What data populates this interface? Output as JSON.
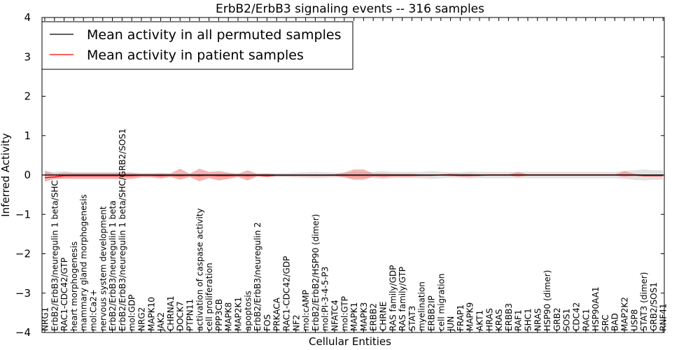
{
  "chart_data": {
    "type": "line",
    "title": "ErbB2/ErbB3 signaling events -- 316 samples",
    "xlabel": "Cellular Entities",
    "ylabel": "Inferred Activity",
    "ylim": [
      -4,
      4
    ],
    "yticks": [
      4,
      3,
      2,
      1,
      0,
      -1,
      -2,
      -3,
      -4
    ],
    "ytick_labels": [
      "4",
      "3",
      "2",
      "1",
      "0",
      "−1",
      "−2",
      "−3",
      "−4"
    ],
    "legend_position": "top-left",
    "categories": [
      "NRG1",
      "ErbB2/ErbB3/neuregulin 1 beta/SHC",
      "RAC1-CDC42/GTP",
      "heart morphogenesis",
      "mammary gland morphogenesis",
      "mol:Ca2+",
      "nervous system development",
      "ErbB2/ErbB3/neuregulin 1 beta",
      "ErbB2/ErbB3/neuregulin 1 beta/SHC/GRB2/SOS1",
      "mol:GDP",
      "NRG2",
      "MAPK10",
      "JAK2",
      "CHRNA1",
      "DOCK7",
      "PTPN11",
      "activation of caspase activity",
      "cell proliferation",
      "PPP3CB",
      "MAPK8",
      "MAP2K1",
      "apoptosis",
      "ErbB2/ErbB3/neuregulin 2",
      "FOS",
      "PRKACA",
      "RAC1-CDC42/GDP",
      "NF2",
      "mol:cAMP",
      "ErbB2/ErbB2/HSP90 (dimer)",
      "mol:PI-3-4-5-P3",
      "NFATC4",
      "mol:GTP",
      "MAPK1",
      "MAPK3",
      "ERBB2",
      "CHRNE",
      "RAS family/GDP",
      "RAS family/GTP",
      "STAT3",
      "myelination",
      "ERBB2IP",
      "cell migration",
      "JUN",
      "FRAP1",
      "MAPK9",
      "AKT1",
      "HRAS",
      "KRAS",
      "ERBB3",
      "RAF1",
      "SHC1",
      "NRAS",
      "HSP90 (dimer)",
      "GRB2",
      "SOS1",
      "CDC42",
      "RAC1",
      "HSP90AA1",
      "SRC",
      "BAD",
      "MAP2K2",
      "USP8",
      "STAT3 (dimer)",
      "GRB2/SOS1",
      "RNF41"
    ],
    "series": [
      {
        "name": "Mean activity in all permuted samples",
        "color": "#000000",
        "values": [
          0.0,
          0.0,
          -0.01,
          0.0,
          0.0,
          0.0,
          0.0,
          0.0,
          0.0,
          0.0,
          0.0,
          0.0,
          0.0,
          0.0,
          0.0,
          0.0,
          0.0,
          0.0,
          0.0,
          0.0,
          0.0,
          0.0,
          0.0,
          0.0,
          0.0,
          0.0,
          0.0,
          0.0,
          0.0,
          0.0,
          0.0,
          0.0,
          0.0,
          0.0,
          0.0,
          0.0,
          0.0,
          0.0,
          0.0,
          0.0,
          0.0,
          0.0,
          0.0,
          0.0,
          0.0,
          0.0,
          0.0,
          0.0,
          0.0,
          0.0,
          0.0,
          0.0,
          0.0,
          0.0,
          0.0,
          0.0,
          0.0,
          0.0,
          0.0,
          0.0,
          0.0,
          0.0,
          0.0,
          0.0,
          0.0
        ],
        "lower": [
          -0.08,
          -0.08,
          -0.1,
          -0.06,
          -0.06,
          -0.06,
          -0.06,
          -0.06,
          -0.06,
          -0.04,
          -0.04,
          -0.04,
          -0.04,
          -0.04,
          -0.04,
          -0.04,
          -0.04,
          -0.04,
          -0.04,
          -0.04,
          -0.04,
          -0.04,
          -0.04,
          -0.04,
          -0.05,
          -0.05,
          -0.06,
          -0.07,
          -0.08,
          -0.07,
          -0.06,
          -0.06,
          -0.07,
          -0.07,
          -0.08,
          -0.1,
          -0.08,
          -0.08,
          -0.08,
          -0.08,
          -0.1,
          -0.08,
          -0.07,
          -0.07,
          -0.09,
          -0.08,
          -0.08,
          -0.08,
          -0.08,
          -0.08,
          -0.08,
          -0.08,
          -0.08,
          -0.08,
          -0.08,
          -0.08,
          -0.08,
          -0.08,
          -0.08,
          -0.08,
          -0.1,
          -0.12,
          -0.14,
          -0.12,
          -0.12
        ],
        "upper": [
          0.08,
          0.08,
          0.1,
          0.06,
          0.06,
          0.06,
          0.06,
          0.06,
          0.06,
          0.04,
          0.04,
          0.04,
          0.04,
          0.04,
          0.04,
          0.04,
          0.04,
          0.04,
          0.04,
          0.04,
          0.04,
          0.04,
          0.04,
          0.04,
          0.05,
          0.05,
          0.06,
          0.07,
          0.08,
          0.07,
          0.06,
          0.06,
          0.07,
          0.07,
          0.08,
          0.1,
          0.08,
          0.08,
          0.08,
          0.08,
          0.1,
          0.08,
          0.07,
          0.07,
          0.09,
          0.08,
          0.08,
          0.08,
          0.08,
          0.08,
          0.08,
          0.08,
          0.08,
          0.08,
          0.08,
          0.08,
          0.08,
          0.08,
          0.08,
          0.08,
          0.1,
          0.12,
          0.14,
          0.12,
          0.12
        ]
      },
      {
        "name": "Mean activity in patient samples",
        "color": "#ff0000",
        "values": [
          -0.07,
          -0.05,
          -0.02,
          -0.02,
          -0.02,
          -0.02,
          -0.02,
          -0.02,
          -0.02,
          -0.02,
          -0.01,
          -0.01,
          -0.02,
          -0.01,
          -0.02,
          -0.01,
          -0.02,
          -0.01,
          -0.02,
          -0.02,
          -0.01,
          -0.02,
          -0.01,
          -0.02,
          -0.01,
          -0.01,
          -0.01,
          -0.01,
          -0.01,
          -0.01,
          -0.01,
          -0.01,
          -0.01,
          -0.01,
          -0.01,
          -0.01,
          -0.01,
          -0.01,
          -0.01,
          -0.01,
          -0.01,
          0.0,
          0.0,
          -0.01,
          -0.01,
          -0.01,
          0.0,
          0.0,
          0.0,
          0.0,
          0.0,
          0.0,
          0.0,
          0.0,
          0.0,
          0.0,
          0.0,
          0.0,
          0.0,
          0.0,
          0.0,
          0.0,
          -0.02,
          -0.02,
          -0.02
        ],
        "lower": [
          -0.17,
          -0.1,
          -0.09,
          -0.1,
          -0.1,
          -0.1,
          -0.1,
          -0.1,
          -0.1,
          -0.1,
          -0.06,
          -0.06,
          -0.09,
          -0.05,
          -0.12,
          -0.05,
          -0.16,
          -0.08,
          -0.14,
          -0.1,
          -0.05,
          -0.14,
          -0.03,
          -0.06,
          -0.02,
          -0.02,
          -0.02,
          -0.02,
          -0.02,
          -0.02,
          -0.02,
          -0.06,
          -0.12,
          -0.12,
          -0.04,
          -0.06,
          -0.04,
          -0.04,
          -0.04,
          -0.02,
          -0.02,
          -0.01,
          -0.03,
          -0.04,
          -0.04,
          -0.02,
          -0.01,
          -0.01,
          -0.01,
          -0.05,
          -0.01,
          -0.01,
          -0.01,
          -0.01,
          -0.01,
          -0.01,
          -0.01,
          -0.01,
          -0.01,
          -0.01,
          -0.05,
          -0.03,
          -0.03,
          -0.03,
          -0.03
        ],
        "upper": [
          0.11,
          0.03,
          0.06,
          0.06,
          0.06,
          0.06,
          0.06,
          0.06,
          0.06,
          0.06,
          0.04,
          0.04,
          0.05,
          0.04,
          0.16,
          0.03,
          0.16,
          0.08,
          0.1,
          0.06,
          0.03,
          0.12,
          0.03,
          0.04,
          0.01,
          0.01,
          0.01,
          0.01,
          0.01,
          0.01,
          0.02,
          0.06,
          0.14,
          0.14,
          0.04,
          0.04,
          0.03,
          0.03,
          0.03,
          0.01,
          0.01,
          0.01,
          0.04,
          0.03,
          0.03,
          0.02,
          0.01,
          0.01,
          0.01,
          0.08,
          0.01,
          0.01,
          0.01,
          0.01,
          0.01,
          0.01,
          0.01,
          0.01,
          0.01,
          0.01,
          0.1,
          0.03,
          0.01,
          0.01,
          0.01
        ]
      }
    ]
  }
}
